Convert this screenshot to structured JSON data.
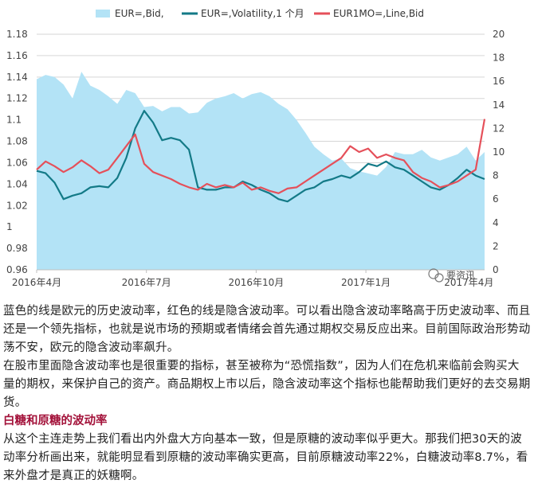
{
  "chart_data": {
    "type": "line",
    "legend": [
      "EUR=,Bid,",
      "EUR=,Volatility,1 个月",
      "EUR1MO=,Line,Bid"
    ],
    "legend_position": "top",
    "x_tick_labels": [
      "2016年4月",
      "2016年7月",
      "2016年10月",
      "2017年1月",
      "2017年4月"
    ],
    "y_left_ticks": [
      "1.18",
      "1.16",
      "1.14",
      "1.12",
      "1.1",
      "1.08",
      "1.06",
      "1.04",
      "1.02",
      "1",
      "0.98",
      "0.96"
    ],
    "y_right_ticks": [
      "20",
      "18",
      "16",
      "14",
      "12",
      "10",
      "8",
      "6",
      "4",
      "2",
      "0"
    ],
    "y_left_range": [
      0.96,
      1.18
    ],
    "y_right_range": [
      0,
      20
    ],
    "grid": "horizontal",
    "colors": {
      "area": "#b3e3f6",
      "historical_vol": "#137a87",
      "implied_vol": "#e5505a",
      "grid": "#d6d6d6"
    },
    "series": [
      {
        "name": "EUR=,Bid,",
        "axis": "left",
        "style": "area",
        "x": [
          0,
          0.02,
          0.04,
          0.06,
          0.08,
          0.1,
          0.12,
          0.14,
          0.16,
          0.18,
          0.2,
          0.22,
          0.24,
          0.26,
          0.28,
          0.3,
          0.32,
          0.34,
          0.36,
          0.38,
          0.4,
          0.42,
          0.44,
          0.46,
          0.48,
          0.5,
          0.52,
          0.54,
          0.56,
          0.58,
          0.6,
          0.62,
          0.64,
          0.66,
          0.68,
          0.7,
          0.72,
          0.74,
          0.76,
          0.78,
          0.8,
          0.82,
          0.84,
          0.86,
          0.88,
          0.9,
          0.92,
          0.94,
          0.96,
          0.98,
          1.0
        ],
        "values": [
          1.138,
          1.142,
          1.14,
          1.133,
          1.12,
          1.145,
          1.132,
          1.128,
          1.122,
          1.115,
          1.128,
          1.125,
          1.112,
          1.113,
          1.108,
          1.112,
          1.112,
          1.106,
          1.107,
          1.116,
          1.12,
          1.122,
          1.125,
          1.12,
          1.124,
          1.126,
          1.122,
          1.115,
          1.11,
          1.1,
          1.088,
          1.075,
          1.068,
          1.062,
          1.064,
          1.055,
          1.052,
          1.05,
          1.048,
          1.056,
          1.07,
          1.068,
          1.068,
          1.072,
          1.065,
          1.062,
          1.065,
          1.068,
          1.075,
          1.062,
          1.07
        ]
      },
      {
        "name": "EUR=,Volatility,1 个月",
        "axis": "right",
        "style": "line",
        "x": [
          0,
          0.02,
          0.04,
          0.06,
          0.08,
          0.1,
          0.12,
          0.14,
          0.16,
          0.18,
          0.2,
          0.22,
          0.24,
          0.26,
          0.28,
          0.3,
          0.32,
          0.34,
          0.36,
          0.38,
          0.4,
          0.42,
          0.44,
          0.46,
          0.48,
          0.5,
          0.52,
          0.54,
          0.56,
          0.58,
          0.6,
          0.62,
          0.64,
          0.66,
          0.68,
          0.7,
          0.72,
          0.74,
          0.76,
          0.78,
          0.8,
          0.82,
          0.84,
          0.86,
          0.88,
          0.9,
          0.92,
          0.94,
          0.96,
          0.98,
          1.0
        ],
        "values": [
          8.4,
          8.2,
          7.4,
          6.0,
          6.3,
          6.5,
          7.0,
          7.1,
          7.0,
          7.8,
          9.5,
          12.0,
          13.5,
          12.5,
          11.0,
          11.2,
          11.0,
          10.2,
          7.0,
          6.8,
          6.8,
          7.0,
          7.0,
          7.5,
          7.2,
          6.8,
          6.5,
          6.0,
          5.8,
          6.3,
          6.8,
          7.0,
          7.5,
          7.7,
          8.0,
          7.8,
          8.3,
          9.0,
          8.8,
          9.2,
          8.7,
          8.5,
          8.0,
          7.5,
          7.0,
          6.8,
          7.2,
          7.8,
          8.5,
          8.0,
          7.7
        ]
      },
      {
        "name": "EUR1MO=,Line,Bid",
        "axis": "right",
        "style": "line",
        "x": [
          0,
          0.02,
          0.04,
          0.06,
          0.08,
          0.1,
          0.12,
          0.14,
          0.16,
          0.18,
          0.2,
          0.22,
          0.24,
          0.26,
          0.28,
          0.3,
          0.32,
          0.34,
          0.36,
          0.38,
          0.4,
          0.42,
          0.44,
          0.46,
          0.48,
          0.5,
          0.52,
          0.54,
          0.56,
          0.58,
          0.6,
          0.62,
          0.64,
          0.66,
          0.68,
          0.7,
          0.72,
          0.74,
          0.76,
          0.78,
          0.8,
          0.82,
          0.84,
          0.86,
          0.88,
          0.9,
          0.92,
          0.94,
          0.96,
          0.98,
          1.0
        ],
        "values": [
          8.5,
          9.2,
          8.8,
          8.3,
          8.7,
          9.3,
          8.8,
          8.2,
          8.5,
          9.5,
          10.5,
          11.5,
          9.0,
          8.3,
          8.0,
          7.7,
          7.3,
          7.0,
          6.8,
          7.3,
          7.0,
          7.2,
          7.0,
          7.4,
          6.8,
          7.0,
          6.7,
          6.5,
          6.9,
          7.0,
          7.5,
          8.0,
          8.5,
          9.0,
          9.5,
          10.5,
          10.0,
          10.3,
          9.5,
          9.8,
          9.5,
          9.3,
          8.3,
          7.8,
          7.5,
          7.0,
          7.2,
          7.5,
          8.0,
          8.5,
          12.8
        ]
      }
    ],
    "watermark": "要资讯"
  },
  "article": {
    "p1": "蓝色的线是欧元的历史波动率，红色的线是隐含波动率。可以看出隐含波动率略高于历史波动率、而且还是一个领先指标，也就是说市场的预期或者情绪会首先通过期权交易反应出来。目前国际政治形势动荡不安，欧元的隐含波动率飙升。",
    "p2": "在股市里面隐含波动率也是很重要的指标，甚至被称为“恐慌指数”，因为人们在危机来临前会购买大量的期权，来保护自己的资产。商品期权上市以后，隐含波动率这个指标也能帮助我们更好的去交易期货。",
    "heading": "白糖和原糖的波动率",
    "p3": "从这个主连走势上我们看出内外盘大方向基本一致，但是原糖的波动率似乎更大。那我们把30天的波动率分析画出来，就能明显看到原糖的波动率确实更高，目前原糖波动率22%，白糖波动率8.7%，看来外盘才是真正的妖糖啊。"
  }
}
